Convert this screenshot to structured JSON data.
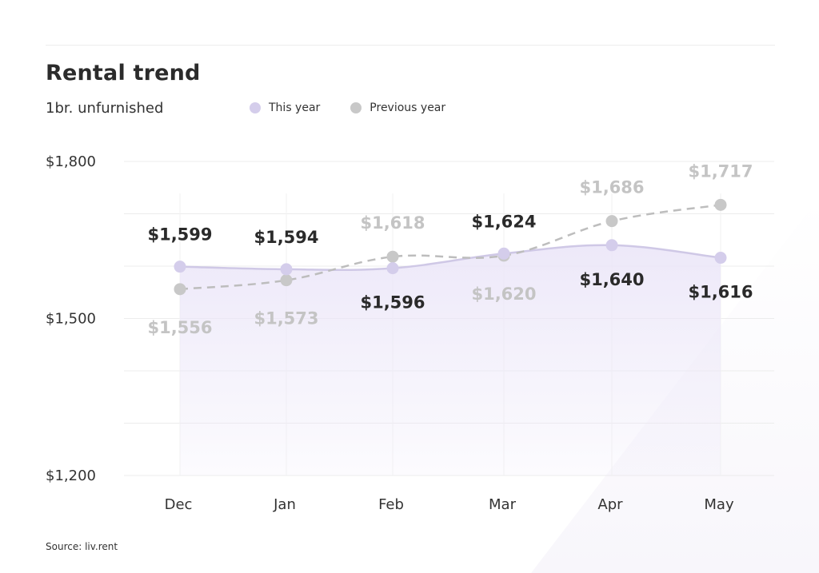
{
  "title": "Rental trend",
  "subtitle": "1br. unfurnished",
  "source": "Source: liv.rent",
  "legend": {
    "this_year": "This year",
    "previous_year": "Previous year"
  },
  "colors": {
    "this_year": "#d4cdeb",
    "this_year_line": "#cfc8e6",
    "this_year_fill": "#ebe6f8",
    "previous_year": "#c8c8c8",
    "previous_year_line": "#bdbdbd",
    "label_dark": "#2a2a2a",
    "label_light": "#c4c4c4",
    "grid": "#ececec",
    "axis_text": "#333333"
  },
  "chart_data": {
    "type": "line",
    "title": "Rental trend",
    "subtitle": "1br. unfurnished",
    "categories": [
      "Dec",
      "Jan",
      "Feb",
      "Mar",
      "Apr",
      "May"
    ],
    "ylim": [
      1200,
      1800
    ],
    "yticks": [
      1200,
      1500,
      1800
    ],
    "ytick_labels": [
      "$1,200",
      "$1,500",
      "$1,800"
    ],
    "grid": true,
    "legend_position": "top",
    "series": [
      {
        "name": "This year",
        "values": [
          1599,
          1594,
          1596,
          1624,
          1640,
          1616
        ],
        "labels": [
          "$1,599",
          "$1,594",
          "$1,596",
          "$1,624",
          "$1,640",
          "$1,616"
        ],
        "style": "solid-area"
      },
      {
        "name": "Previous year",
        "values": [
          1556,
          1573,
          1618,
          1620,
          1686,
          1717
        ],
        "labels": [
          "$1,556",
          "$1,573",
          "$1,618",
          "$1,620",
          "$1,686",
          "$1,717"
        ],
        "style": "dashed"
      }
    ]
  }
}
